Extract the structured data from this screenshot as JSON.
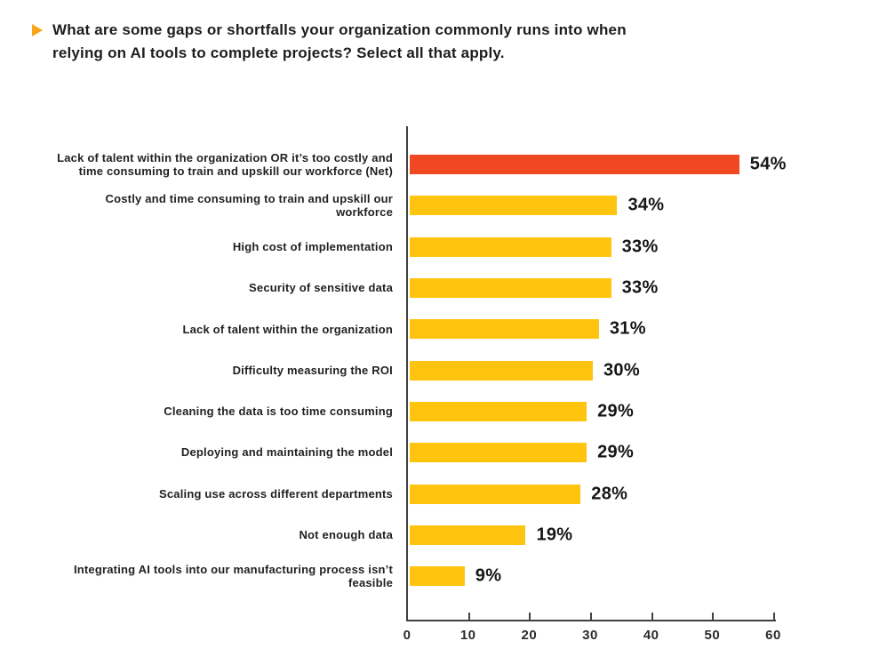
{
  "question": {
    "bullet_icon": "triangle-right-icon",
    "bullet_color": "#F9A51B",
    "lines": [
      "What are some gaps or shortfalls your organization commonly runs into when",
      "relying on AI tools to complete projects? Select all that apply."
    ],
    "full_text": "What are some gaps or shortfalls your organization commonly runs into when relying on AI tools to complete projects? Select all that apply."
  },
  "chart_data": {
    "type": "bar",
    "orientation": "horizontal",
    "title": "",
    "xlabel": "",
    "ylabel": "",
    "unit": "%",
    "xlim": [
      0,
      60
    ],
    "x_ticks": [
      "0",
      "10",
      "20",
      "30",
      "40",
      "50",
      "60"
    ],
    "grid": false,
    "legend": false,
    "categories": [
      "Lack of talent within the organization OR it’s too costly and time consuming to train and upskill our workforce (Net)",
      "Costly and time consuming to train and upskill our workforce",
      "High cost of implementation",
      "Security of sensitive data",
      "Lack of talent within the organization",
      "Difficulty measuring the ROI",
      "Cleaning the data is too time consuming",
      "Deploying and maintaining the model",
      "Scaling use across different departments",
      "Not enough data",
      "Integrating AI tools into our manufacturing process isn’t feasible"
    ],
    "values": [
      54,
      34,
      33,
      33,
      31,
      30,
      29,
      29,
      28,
      19,
      9
    ],
    "bars": [
      {
        "label": "Lack of talent within the organization OR it’s too costly and time consuming to train and upskill our workforce (Net)",
        "value": 54,
        "display": "54%",
        "color": "#EF4823"
      },
      {
        "label": "Costly and time consuming to train and upskill our workforce",
        "value": 34,
        "display": "34%",
        "color": "#FFC40D"
      },
      {
        "label": "High cost of implementation",
        "value": 33,
        "display": "33%",
        "color": "#FFC40D"
      },
      {
        "label": "Security of sensitive data",
        "value": 33,
        "display": "33%",
        "color": "#FFC40D"
      },
      {
        "label": "Lack of talent within the organization",
        "value": 31,
        "display": "31%",
        "color": "#FFC40D"
      },
      {
        "label": "Difficulty measuring the ROI",
        "value": 30,
        "display": "30%",
        "color": "#FFC40D"
      },
      {
        "label": "Cleaning the data is too time consuming",
        "value": 29,
        "display": "29%",
        "color": "#FFC40D"
      },
      {
        "label": "Deploying and maintaining the model",
        "value": 29,
        "display": "29%",
        "color": "#FFC40D"
      },
      {
        "label": "Scaling use across different departments",
        "value": 28,
        "display": "28%",
        "color": "#FFC40D"
      },
      {
        "label": "Not enough data",
        "value": 19,
        "display": "19%",
        "color": "#FFC40D"
      },
      {
        "label": "Integrating AI tools into our manufacturing process isn’t feasible",
        "value": 9,
        "display": "9%",
        "color": "#FFC40D"
      }
    ],
    "colors": {
      "highlight_bar": "#EF4823",
      "default_bar": "#FFC40D",
      "axis": "#414042",
      "text": "#231F20"
    }
  }
}
